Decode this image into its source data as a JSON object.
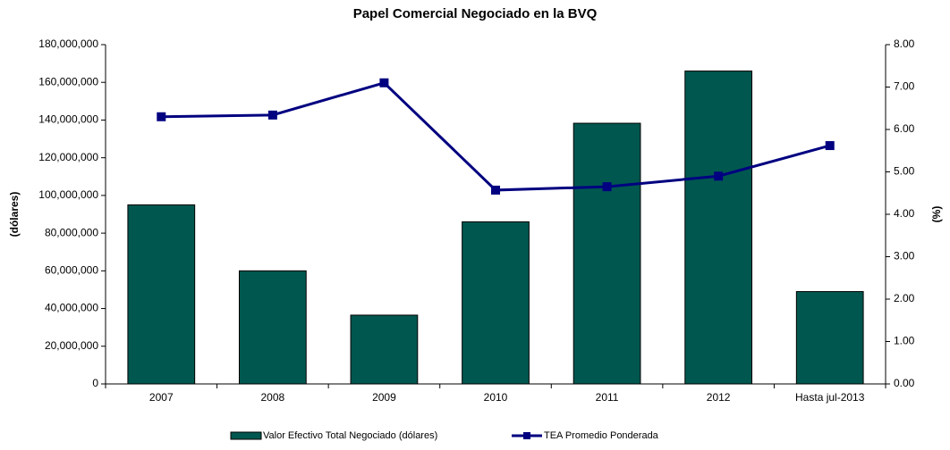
{
  "chart_data": {
    "type": "bar_line",
    "title": "Papel Comercial Negociado en la BVQ",
    "ylabel": "(dólares)",
    "y2label": "(%)",
    "categories": [
      "2007",
      "2008",
      "2009",
      "2010",
      "2011",
      "2012",
      "Hasta jul-2013"
    ],
    "series": [
      {
        "name": "Valor Efectivo Total Negociado (dólares)",
        "type": "bar",
        "color": "#00574f",
        "axis": "y",
        "values": [
          95000000,
          60000000,
          36500000,
          86000000,
          138300000,
          166000000,
          49000000
        ]
      },
      {
        "name": "TEA Promedio Ponderada",
        "type": "line",
        "color": "#000080",
        "axis": "y2",
        "values": [
          6.3,
          6.34,
          7.1,
          4.57,
          4.65,
          4.9,
          5.62
        ]
      }
    ],
    "ylim": [
      0,
      180000000
    ],
    "yticks": [
      0,
      {
        "value": 20000000,
        "label": "20,000,000"
      },
      {
        "value": 40000000,
        "label": "40,000,000"
      },
      {
        "value": 60000000,
        "label": "60,000,000"
      },
      {
        "value": 80000000,
        "label": "80,000,000"
      },
      {
        "value": 100000000,
        "label": "100,000,000"
      },
      {
        "value": 120000000,
        "label": "120,000,000"
      },
      {
        "value": 140000000,
        "label": "140,000,000"
      },
      {
        "value": 160000000,
        "label": "160,000,000"
      },
      {
        "value": 180000000,
        "label": "180,000,000"
      }
    ],
    "y2lim": [
      0,
      8
    ],
    "y2ticks": [
      {
        "value": 0,
        "label": "0.00"
      },
      {
        "value": 1,
        "label": "1.00"
      },
      {
        "value": 2,
        "label": "2.00"
      },
      {
        "value": 3,
        "label": "3.00"
      },
      {
        "value": 4,
        "label": "4.00"
      },
      {
        "value": 5,
        "label": "5.00"
      },
      {
        "value": 6,
        "label": "6.00"
      },
      {
        "value": 7,
        "label": "7.00"
      },
      {
        "value": 8,
        "label": "8.00"
      }
    ],
    "legend": "bottom"
  }
}
